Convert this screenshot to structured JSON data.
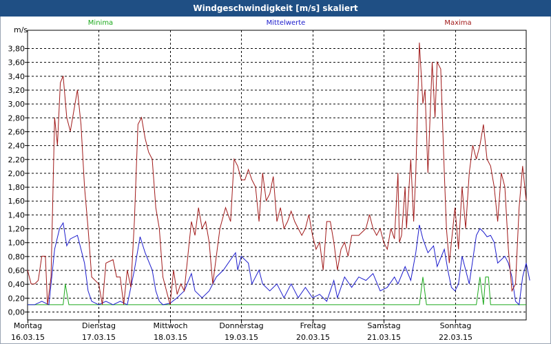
{
  "window": {
    "title": "Windgeschwindigkeit [m/s] skaliert"
  },
  "colors": {
    "minima": "#1aa81a",
    "mittel": "#1a1acc",
    "maxima": "#a01818",
    "grid": "#000000"
  },
  "chart_data": {
    "type": "line",
    "title": "Windgeschwindigkeit [m/s] skaliert",
    "ylabel": "m/s",
    "xlabel": "",
    "ylim": [
      0,
      3.9
    ],
    "yticks": [
      "0,00",
      "0,20",
      "0,40",
      "0,60",
      "0,80",
      "1,00",
      "1,20",
      "1,40",
      "1,60",
      "1,80",
      "2,00",
      "2,20",
      "2,40",
      "2,60",
      "2,80",
      "3,00",
      "3,20",
      "3,40",
      "3,60",
      "3,80"
    ],
    "grid": true,
    "legend_position": "top",
    "x_range": [
      0,
      7
    ],
    "day_labels": [
      {
        "day": "Montag",
        "date": "16.03.15"
      },
      {
        "day": "Dienstag",
        "date": "17.03.15"
      },
      {
        "day": "Mittwoch",
        "date": "18.03.15"
      },
      {
        "day": "Donnerstag",
        "date": "19.03.15"
      },
      {
        "day": "Freitag",
        "date": "20.03.15"
      },
      {
        "day": "Samstag",
        "date": "21.03.15"
      },
      {
        "day": "Sonntag",
        "date": "22.03.15"
      }
    ],
    "series": [
      {
        "name": "Minima",
        "color": "#1aa81a",
        "points": [
          [
            0,
            0.1
          ],
          [
            0.5,
            0.1
          ],
          [
            0.53,
            0.4
          ],
          [
            0.58,
            0.1
          ],
          [
            1,
            0.1
          ],
          [
            2,
            0.1
          ],
          [
            3,
            0.1
          ],
          [
            4,
            0.1
          ],
          [
            5,
            0.1
          ],
          [
            5.5,
            0.1
          ],
          [
            5.55,
            0.5
          ],
          [
            5.6,
            0.1
          ],
          [
            6,
            0.1
          ],
          [
            6.3,
            0.1
          ],
          [
            6.35,
            0.5
          ],
          [
            6.4,
            0.1
          ],
          [
            6.43,
            0.5
          ],
          [
            6.47,
            0.5
          ],
          [
            6.5,
            0.1
          ],
          [
            7,
            0.1
          ]
        ]
      },
      {
        "name": "Mittelwerte",
        "color": "#1a1acc",
        "points": [
          [
            0,
            0.1
          ],
          [
            0.1,
            0.1
          ],
          [
            0.2,
            0.15
          ],
          [
            0.3,
            0.1
          ],
          [
            0.38,
            0.9
          ],
          [
            0.45,
            1.2
          ],
          [
            0.5,
            1.28
          ],
          [
            0.55,
            0.95
          ],
          [
            0.6,
            1.05
          ],
          [
            0.7,
            1.1
          ],
          [
            0.75,
            0.9
          ],
          [
            0.8,
            0.7
          ],
          [
            0.85,
            0.3
          ],
          [
            0.9,
            0.15
          ],
          [
            1.0,
            0.1
          ],
          [
            1.1,
            0.15
          ],
          [
            1.2,
            0.1
          ],
          [
            1.3,
            0.15
          ],
          [
            1.4,
            0.1
          ],
          [
            1.5,
            0.6
          ],
          [
            1.58,
            1.08
          ],
          [
            1.65,
            0.85
          ],
          [
            1.75,
            0.6
          ],
          [
            1.8,
            0.3
          ],
          [
            1.85,
            0.15
          ],
          [
            1.9,
            0.1
          ],
          [
            2.0,
            0.12
          ],
          [
            2.1,
            0.2
          ],
          [
            2.2,
            0.3
          ],
          [
            2.3,
            0.55
          ],
          [
            2.35,
            0.3
          ],
          [
            2.45,
            0.2
          ],
          [
            2.55,
            0.3
          ],
          [
            2.65,
            0.5
          ],
          [
            2.75,
            0.6
          ],
          [
            2.85,
            0.75
          ],
          [
            2.92,
            0.85
          ],
          [
            2.95,
            0.6
          ],
          [
            3.0,
            0.8
          ],
          [
            3.1,
            0.7
          ],
          [
            3.15,
            0.4
          ],
          [
            3.25,
            0.6
          ],
          [
            3.3,
            0.4
          ],
          [
            3.4,
            0.3
          ],
          [
            3.5,
            0.4
          ],
          [
            3.6,
            0.2
          ],
          [
            3.7,
            0.4
          ],
          [
            3.8,
            0.2
          ],
          [
            3.9,
            0.35
          ],
          [
            4.0,
            0.2
          ],
          [
            4.1,
            0.25
          ],
          [
            4.2,
            0.15
          ],
          [
            4.3,
            0.45
          ],
          [
            4.35,
            0.2
          ],
          [
            4.45,
            0.5
          ],
          [
            4.55,
            0.35
          ],
          [
            4.65,
            0.5
          ],
          [
            4.75,
            0.45
          ],
          [
            4.85,
            0.55
          ],
          [
            4.95,
            0.3
          ],
          [
            5.05,
            0.35
          ],
          [
            5.15,
            0.5
          ],
          [
            5.2,
            0.4
          ],
          [
            5.3,
            0.65
          ],
          [
            5.38,
            0.45
          ],
          [
            5.45,
            0.85
          ],
          [
            5.5,
            1.25
          ],
          [
            5.55,
            1.05
          ],
          [
            5.62,
            0.85
          ],
          [
            5.7,
            0.95
          ],
          [
            5.75,
            0.65
          ],
          [
            5.85,
            0.9
          ],
          [
            5.9,
            0.6
          ],
          [
            5.95,
            0.35
          ],
          [
            6.0,
            0.3
          ],
          [
            6.05,
            0.4
          ],
          [
            6.1,
            0.8
          ],
          [
            6.2,
            0.4
          ],
          [
            6.3,
            1.1
          ],
          [
            6.35,
            1.2
          ],
          [
            6.4,
            1.15
          ],
          [
            6.45,
            1.08
          ],
          [
            6.5,
            1.1
          ],
          [
            6.55,
            1.0
          ],
          [
            6.6,
            0.7
          ],
          [
            6.7,
            0.8
          ],
          [
            6.75,
            0.7
          ],
          [
            6.8,
            0.5
          ],
          [
            6.85,
            0.15
          ],
          [
            6.9,
            0.1
          ],
          [
            6.95,
            0.5
          ],
          [
            7.0,
            0.7
          ],
          [
            7.05,
            0.45
          ]
        ]
      },
      {
        "name": "Maxima",
        "color": "#a01818",
        "points": [
          [
            0,
            0.6
          ],
          [
            0.05,
            0.4
          ],
          [
            0.1,
            0.4
          ],
          [
            0.15,
            0.45
          ],
          [
            0.2,
            0.8
          ],
          [
            0.25,
            0.8
          ],
          [
            0.28,
            0.1
          ],
          [
            0.33,
            0.5
          ],
          [
            0.38,
            2.8
          ],
          [
            0.42,
            2.4
          ],
          [
            0.46,
            3.3
          ],
          [
            0.5,
            3.4
          ],
          [
            0.55,
            2.8
          ],
          [
            0.6,
            2.6
          ],
          [
            0.7,
            3.2
          ],
          [
            0.75,
            2.7
          ],
          [
            0.8,
            1.8
          ],
          [
            0.85,
            1.2
          ],
          [
            0.9,
            0.5
          ],
          [
            1.0,
            0.4
          ],
          [
            1.05,
            0.1
          ],
          [
            1.1,
            0.7
          ],
          [
            1.2,
            0.75
          ],
          [
            1.25,
            0.5
          ],
          [
            1.3,
            0.5
          ],
          [
            1.35,
            0.1
          ],
          [
            1.4,
            0.6
          ],
          [
            1.45,
            0.35
          ],
          [
            1.5,
            1.3
          ],
          [
            1.55,
            2.7
          ],
          [
            1.6,
            2.8
          ],
          [
            1.65,
            2.5
          ],
          [
            1.7,
            2.3
          ],
          [
            1.75,
            2.2
          ],
          [
            1.8,
            1.5
          ],
          [
            1.85,
            1.2
          ],
          [
            1.9,
            0.5
          ],
          [
            1.95,
            0.3
          ],
          [
            2.0,
            0.1
          ],
          [
            2.05,
            0.6
          ],
          [
            2.1,
            0.25
          ],
          [
            2.15,
            0.4
          ],
          [
            2.2,
            0.3
          ],
          [
            2.3,
            1.3
          ],
          [
            2.35,
            1.1
          ],
          [
            2.4,
            1.5
          ],
          [
            2.45,
            1.2
          ],
          [
            2.5,
            1.3
          ],
          [
            2.55,
            1.0
          ],
          [
            2.6,
            0.4
          ],
          [
            2.7,
            1.2
          ],
          [
            2.78,
            1.5
          ],
          [
            2.85,
            1.3
          ],
          [
            2.9,
            2.2
          ],
          [
            2.95,
            2.1
          ],
          [
            3.0,
            1.9
          ],
          [
            3.05,
            1.9
          ],
          [
            3.1,
            2.05
          ],
          [
            3.15,
            1.9
          ],
          [
            3.2,
            1.8
          ],
          [
            3.25,
            1.3
          ],
          [
            3.3,
            2.0
          ],
          [
            3.35,
            1.6
          ],
          [
            3.4,
            1.7
          ],
          [
            3.45,
            1.95
          ],
          [
            3.5,
            1.3
          ],
          [
            3.55,
            1.5
          ],
          [
            3.6,
            1.2
          ],
          [
            3.65,
            1.3
          ],
          [
            3.7,
            1.45
          ],
          [
            3.75,
            1.3
          ],
          [
            3.8,
            1.2
          ],
          [
            3.85,
            1.1
          ],
          [
            3.9,
            1.2
          ],
          [
            3.95,
            1.4
          ],
          [
            4.0,
            1.1
          ],
          [
            4.05,
            0.9
          ],
          [
            4.1,
            1.0
          ],
          [
            4.15,
            0.6
          ],
          [
            4.2,
            1.3
          ],
          [
            4.25,
            1.3
          ],
          [
            4.3,
            1.0
          ],
          [
            4.35,
            0.6
          ],
          [
            4.4,
            0.9
          ],
          [
            4.45,
            1.0
          ],
          [
            4.5,
            0.8
          ],
          [
            4.55,
            1.1
          ],
          [
            4.65,
            1.1
          ],
          [
            4.75,
            1.2
          ],
          [
            4.8,
            1.4
          ],
          [
            4.85,
            1.2
          ],
          [
            4.9,
            1.1
          ],
          [
            4.95,
            1.2
          ],
          [
            5.0,
            1.0
          ],
          [
            5.05,
            0.9
          ],
          [
            5.1,
            1.2
          ],
          [
            5.15,
            1.05
          ],
          [
            5.2,
            2.0
          ],
          [
            5.22,
            1.0
          ],
          [
            5.25,
            1.1
          ],
          [
            5.3,
            1.8
          ],
          [
            5.32,
            1.2
          ],
          [
            5.38,
            2.2
          ],
          [
            5.42,
            1.3
          ],
          [
            5.45,
            2.0
          ],
          [
            5.5,
            3.88
          ],
          [
            5.55,
            3.0
          ],
          [
            5.58,
            3.2
          ],
          [
            5.62,
            2.0
          ],
          [
            5.68,
            3.6
          ],
          [
            5.72,
            2.8
          ],
          [
            5.75,
            3.6
          ],
          [
            5.8,
            3.5
          ],
          [
            5.85,
            2.0
          ],
          [
            5.88,
            1.2
          ],
          [
            5.92,
            0.7
          ],
          [
            5.95,
            1.0
          ],
          [
            6.0,
            1.5
          ],
          [
            6.05,
            0.9
          ],
          [
            6.1,
            1.8
          ],
          [
            6.15,
            1.2
          ],
          [
            6.2,
            2.0
          ],
          [
            6.25,
            2.4
          ],
          [
            6.3,
            2.2
          ],
          [
            6.35,
            2.4
          ],
          [
            6.4,
            2.7
          ],
          [
            6.45,
            2.2
          ],
          [
            6.5,
            2.1
          ],
          [
            6.55,
            1.8
          ],
          [
            6.6,
            1.3
          ],
          [
            6.65,
            2.0
          ],
          [
            6.7,
            1.8
          ],
          [
            6.75,
            0.9
          ],
          [
            6.8,
            0.3
          ],
          [
            6.85,
            0.4
          ],
          [
            6.9,
            1.5
          ],
          [
            6.95,
            2.1
          ],
          [
            7.0,
            1.6
          ]
        ]
      }
    ]
  }
}
